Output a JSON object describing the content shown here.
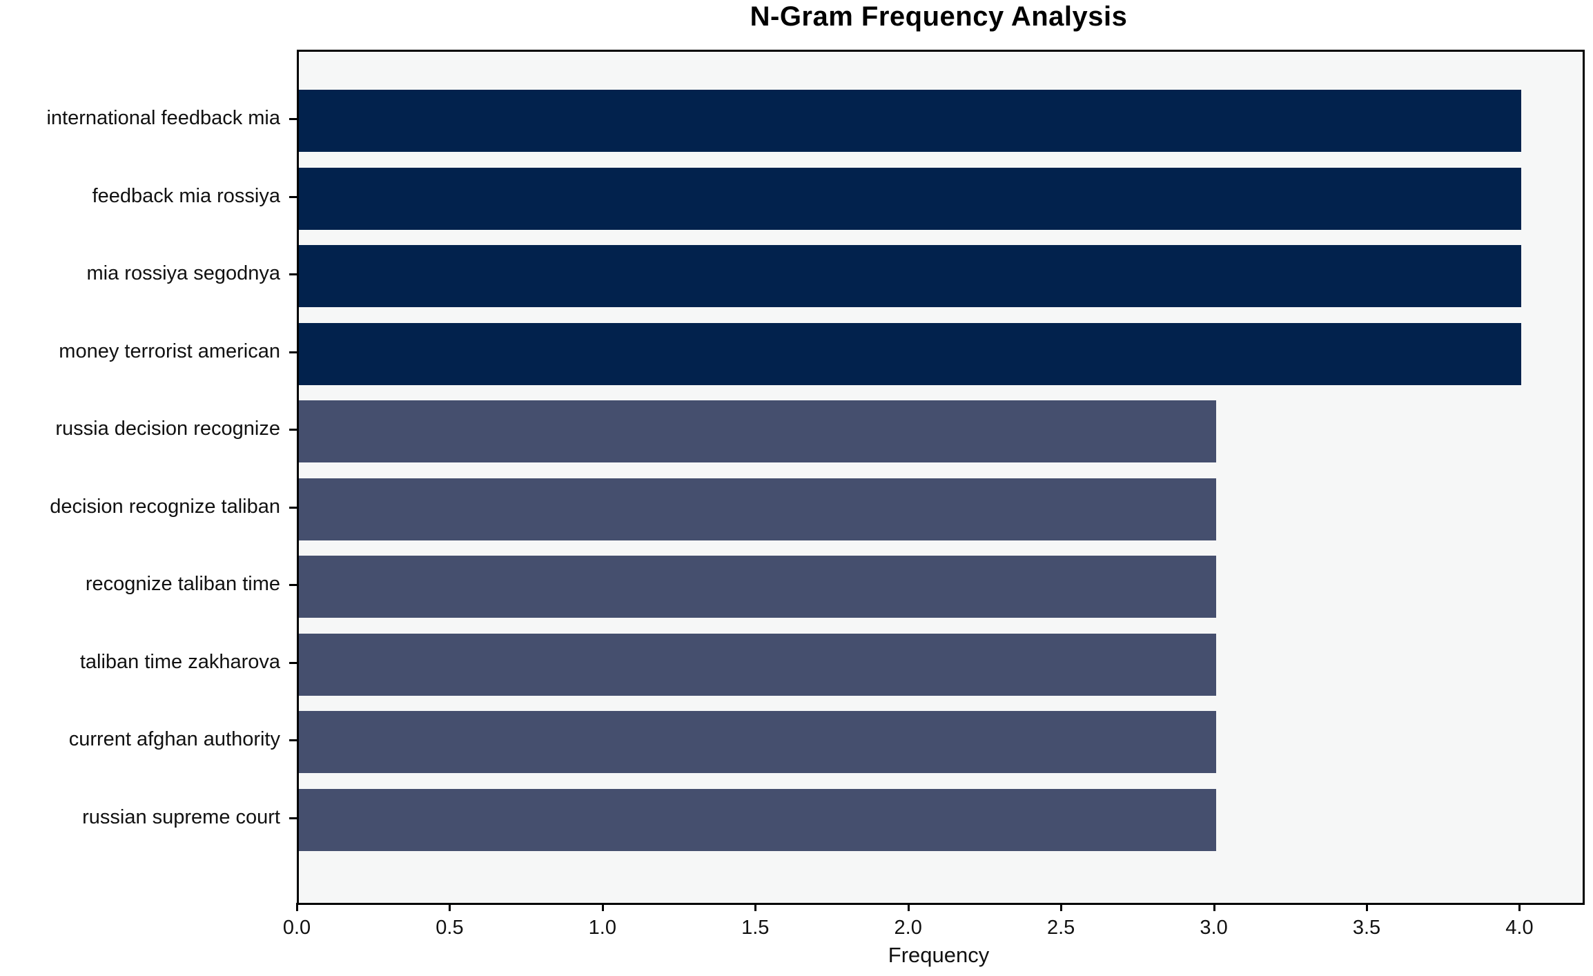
{
  "title": "N-Gram Frequency Analysis",
  "chart_data": {
    "type": "bar",
    "orientation": "horizontal",
    "title": "N-Gram Frequency Analysis",
    "xlabel": "Frequency",
    "ylabel": "",
    "categories": [
      "international feedback mia",
      "feedback mia rossiya",
      "mia rossiya segodnya",
      "money terrorist american",
      "russia decision recognize",
      "decision recognize taliban",
      "recognize taliban time",
      "taliban time zakharova",
      "current afghan authority",
      "russian supreme court"
    ],
    "values": [
      4,
      4,
      4,
      4,
      3,
      3,
      3,
      3,
      3,
      3
    ],
    "bar_colors": [
      "#02224d",
      "#02224d",
      "#02224d",
      "#02224d",
      "#454f6e",
      "#454f6e",
      "#454f6e",
      "#454f6e",
      "#454f6e",
      "#454f6e"
    ],
    "xlim": [
      0,
      4.2
    ],
    "xticks": [
      0.0,
      0.5,
      1.0,
      1.5,
      2.0,
      2.5,
      3.0,
      3.5,
      4.0
    ],
    "xtick_labels": [
      "0.0",
      "0.5",
      "1.0",
      "1.5",
      "2.0",
      "2.5",
      "3.0",
      "3.5",
      "4.0"
    ],
    "grid": false,
    "legend": "none",
    "plot_background": "#f6f7f7",
    "figure_background": "#ffffff",
    "spine_color": "#000000",
    "colors": {
      "value_4": "#02224d",
      "value_3": "#454f6e"
    }
  }
}
